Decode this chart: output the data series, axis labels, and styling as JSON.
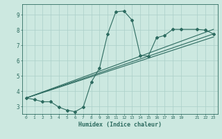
{
  "xlabel": "Humidex (Indice chaleur)",
  "bg_color": "#cce8e0",
  "line_color": "#2d6b60",
  "grid_color": "#aacfc8",
  "xlim": [
    -0.5,
    23.5
  ],
  "ylim": [
    2.5,
    9.7
  ],
  "xticks": [
    0,
    1,
    2,
    3,
    4,
    5,
    6,
    7,
    8,
    9,
    10,
    11,
    12,
    13,
    14,
    15,
    16,
    17,
    18,
    19,
    21,
    22,
    23
  ],
  "yticks": [
    3,
    4,
    5,
    6,
    7,
    8,
    9
  ],
  "line1_x": [
    0,
    1,
    2,
    3,
    4,
    5,
    6,
    7,
    8,
    9,
    10,
    11,
    12,
    13,
    14,
    15,
    16,
    17,
    18,
    19,
    21,
    22,
    23
  ],
  "line1_y": [
    3.55,
    3.45,
    3.3,
    3.3,
    2.95,
    2.75,
    2.65,
    2.95,
    4.6,
    5.5,
    7.75,
    9.2,
    9.25,
    8.65,
    6.35,
    6.3,
    7.5,
    7.65,
    8.05,
    8.05,
    8.05,
    8.0,
    7.75
  ],
  "line2_x": [
    0,
    23
  ],
  "line2_y": [
    3.55,
    7.75
  ],
  "line3_x": [
    0,
    23
  ],
  "line3_y": [
    3.55,
    8.05
  ],
  "line4_x": [
    0,
    23
  ],
  "line4_y": [
    3.55,
    7.55
  ]
}
